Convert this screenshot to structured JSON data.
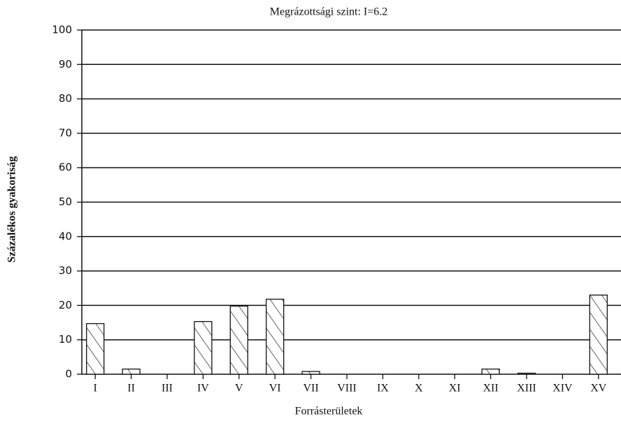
{
  "chart_data": {
    "type": "bar",
    "title": "Megrázottsági szint: I=6.2",
    "x_label": "Forrásterületek",
    "y_label": "Százalékos gyakoriság",
    "categories": [
      "I",
      "II",
      "III",
      "IV",
      "V",
      "VI",
      "VII",
      "VIII",
      "IX",
      "X",
      "XI",
      "XII",
      "XIII",
      "XIV",
      "XV"
    ],
    "values": [
      14.7,
      1.5,
      0,
      15.3,
      19.8,
      21.8,
      0.8,
      0,
      0,
      0,
      0,
      1.5,
      0.3,
      0,
      23
    ],
    "color": "#111",
    "ylim": [
      0,
      100
    ],
    "yticks": [
      0,
      10,
      20,
      30,
      40,
      50,
      60,
      70,
      80,
      90,
      100
    ],
    "grid": true
  }
}
